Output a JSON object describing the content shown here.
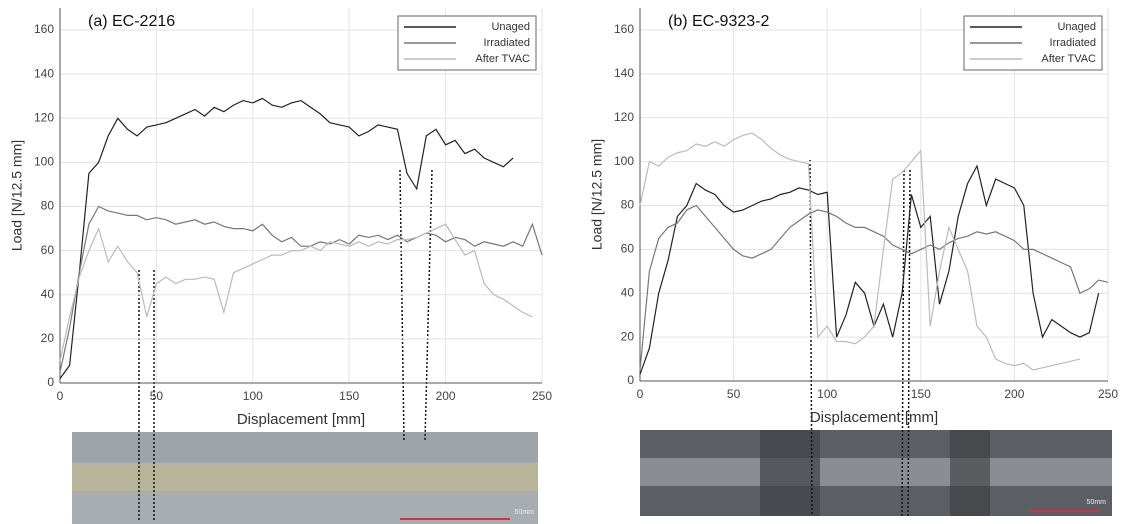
{
  "chart_data": [
    {
      "type": "line",
      "title": "(a) EC-2216",
      "xlabel": "Displacement [mm]",
      "ylabel": "Load  [N/12.5 mm]",
      "x": [
        0,
        5,
        10,
        15,
        20,
        25,
        30,
        35,
        40,
        45,
        50,
        55,
        60,
        65,
        70,
        75,
        80,
        85,
        90,
        95,
        100,
        105,
        110,
        115,
        120,
        125,
        130,
        135,
        140,
        145,
        150,
        155,
        160,
        165,
        170,
        175,
        180,
        185,
        190,
        195,
        200,
        205,
        210,
        215,
        220,
        225,
        230,
        235,
        240,
        245,
        250
      ],
      "series": [
        {
          "name": "Unaged",
          "color": "#222222",
          "values": [
            2,
            8,
            50,
            95,
            100,
            112,
            120,
            115,
            112,
            116,
            117,
            118,
            120,
            122,
            124,
            121,
            125,
            123,
            126,
            128,
            127,
            129,
            126,
            125,
            127,
            128,
            125,
            122,
            118,
            117,
            116,
            112,
            114,
            117,
            116,
            115,
            95,
            88,
            112,
            115,
            108,
            110,
            104,
            106,
            102,
            100,
            98,
            102,
            null,
            null,
            null
          ]
        },
        {
          "name": "Irradiated",
          "color": "#777777",
          "values": [
            5,
            25,
            50,
            72,
            80,
            78,
            77,
            76,
            76,
            74,
            75,
            74,
            72,
            73,
            74,
            72,
            73,
            71,
            70,
            70,
            69,
            72,
            67,
            64,
            66,
            62,
            62,
            64,
            63,
            65,
            63,
            67,
            66,
            67,
            65,
            67,
            64,
            66,
            68,
            67,
            64,
            66,
            65,
            62,
            64,
            63,
            62,
            64,
            62,
            72,
            58
          ]
        },
        {
          "name": "After TVAC",
          "color": "#bbbbbb",
          "values": [
            10,
            30,
            48,
            60,
            70,
            55,
            62,
            55,
            50,
            30,
            45,
            48,
            45,
            47,
            47,
            48,
            47,
            32,
            50,
            52,
            54,
            56,
            58,
            58,
            60,
            60,
            62,
            60,
            64,
            63,
            62,
            64,
            62,
            64,
            63,
            65,
            65,
            66,
            68,
            70,
            72,
            65,
            58,
            60,
            45,
            40,
            38,
            35,
            32,
            30,
            null
          ]
        }
      ],
      "xlim": [
        0,
        250
      ],
      "ylim": [
        0,
        170
      ],
      "xticks": [
        0,
        50,
        100,
        150,
        200,
        250
      ],
      "yticks": [
        0,
        20,
        40,
        60,
        80,
        100,
        120,
        140,
        160
      ],
      "grid": true,
      "legend": "upper right",
      "scale_bar_label": "50mm"
    },
    {
      "type": "line",
      "title": "(b) EC-9323-2",
      "xlabel": "Displacement [mm]",
      "ylabel": "Load  [N/12.5 mm]",
      "x": [
        0,
        5,
        10,
        15,
        20,
        25,
        30,
        35,
        40,
        45,
        50,
        55,
        60,
        65,
        70,
        75,
        80,
        85,
        90,
        95,
        100,
        105,
        110,
        115,
        120,
        125,
        130,
        135,
        140,
        145,
        150,
        155,
        160,
        165,
        170,
        175,
        180,
        185,
        190,
        195,
        200,
        205,
        210,
        215,
        220,
        225,
        230,
        235,
        240,
        245,
        250
      ],
      "series": [
        {
          "name": "Unaged",
          "color": "#222222",
          "values": [
            3,
            15,
            40,
            55,
            75,
            80,
            90,
            87,
            85,
            80,
            77,
            78,
            80,
            82,
            83,
            85,
            86,
            88,
            87,
            85,
            86,
            20,
            30,
            45,
            40,
            25,
            35,
            20,
            40,
            85,
            70,
            75,
            35,
            50,
            75,
            90,
            98,
            80,
            92,
            90,
            88,
            80,
            40,
            20,
            28,
            25,
            22,
            20,
            22,
            40,
            null
          ]
        },
        {
          "name": "Irradiated",
          "color": "#777777",
          "values": [
            5,
            50,
            65,
            70,
            72,
            78,
            80,
            75,
            70,
            65,
            60,
            57,
            56,
            58,
            60,
            65,
            70,
            73,
            76,
            78,
            77,
            75,
            72,
            70,
            70,
            68,
            66,
            62,
            60,
            58,
            60,
            62,
            60,
            63,
            65,
            66,
            68,
            67,
            68,
            66,
            64,
            60,
            60,
            58,
            56,
            54,
            52,
            40,
            42,
            46,
            45
          ]
        },
        {
          "name": "After TVAC",
          "color": "#bbbbbb",
          "values": [
            80,
            100,
            98,
            102,
            104,
            105,
            108,
            107,
            109,
            107,
            110,
            112,
            113,
            110,
            106,
            103,
            101,
            100,
            99,
            20,
            25,
            18,
            18,
            17,
            20,
            25,
            60,
            92,
            95,
            100,
            105,
            25,
            50,
            70,
            60,
            50,
            25,
            20,
            10,
            8,
            7,
            8,
            5,
            6,
            7,
            8,
            9,
            10,
            null,
            null,
            null
          ]
        }
      ],
      "xlim": [
        0,
        250
      ],
      "ylim": [
        0,
        170
      ],
      "xticks": [
        0,
        50,
        100,
        150,
        200,
        250
      ],
      "yticks": [
        0,
        20,
        40,
        60,
        80,
        100,
        120,
        140,
        160
      ],
      "grid": true,
      "legend": "upper right",
      "scale_bar_label": "50mm"
    }
  ]
}
